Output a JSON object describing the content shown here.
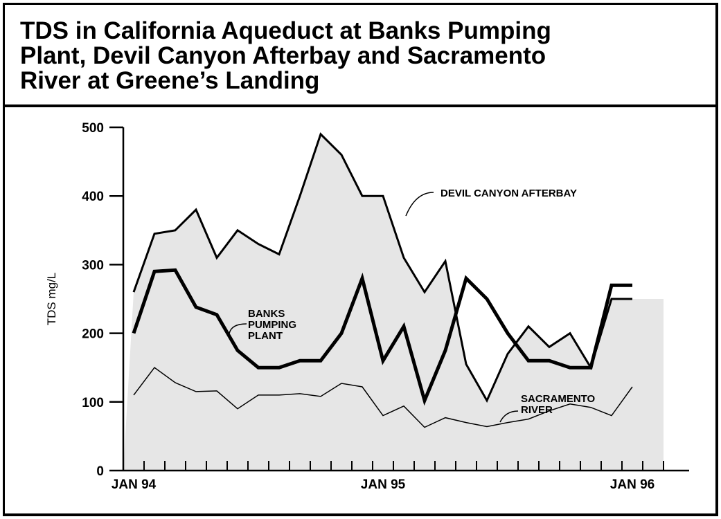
{
  "title": "TDS in California Aqueduct at Banks Pumping\nPlant, Devil Canyon Afterbay and Sacramento\nRiver at Greene’s Landing",
  "chart_data": {
    "type": "line",
    "title": "TDS in California Aqueduct at Banks Pumping Plant, Devil Canyon Afterbay and Sacramento River at Greene’s Landing",
    "xlabel": "",
    "ylabel": "TDS mg/L",
    "ylim": [
      0,
      500
    ],
    "yticks": [
      0,
      100,
      200,
      300,
      400,
      500
    ],
    "ytick_labels": [
      "0",
      "100",
      "200",
      "300",
      "400",
      "500"
    ],
    "xticks": [
      "JAN 94",
      "JAN 95",
      "JAN 96"
    ],
    "x_unit": "months since JAN 94 (monthly samples)",
    "xlim": [
      0,
      24
    ],
    "x": [
      0,
      1,
      2,
      3,
      4,
      5,
      6,
      7,
      8,
      9,
      10,
      11,
      12,
      13,
      14,
      15,
      16,
      17,
      18,
      19,
      20,
      21,
      22,
      23,
      24,
      25
    ],
    "grid": false,
    "legend": "none (series labeled by callouts)",
    "fill_color": "#e6e6e6",
    "series": [
      {
        "name": "DEVIL CANYON AFTERBAY",
        "label_lines": [
          "DEVIL CANYON AFTERBAY"
        ],
        "values": [
          260,
          345,
          350,
          380,
          310,
          350,
          330,
          315,
          400,
          490,
          460,
          400,
          400,
          310,
          260,
          305,
          155,
          102,
          170,
          210,
          180,
          200,
          150,
          250,
          250,
          null
        ],
        "stroke_width": 3
      },
      {
        "name": "BANKS PUMPING PLANT",
        "label_lines": [
          "BANKS",
          "PUMPING",
          "PLANT"
        ],
        "values": [
          200,
          290,
          292,
          238,
          227,
          175,
          150,
          150,
          160,
          160,
          200,
          280,
          160,
          210,
          102,
          175,
          280,
          250,
          200,
          160,
          160,
          150,
          150,
          270,
          270,
          null
        ],
        "stroke_width": 5
      },
      {
        "name": "SACRAMENTO RIVER",
        "label_lines": [
          "SACRAMENTO",
          "RIVER"
        ],
        "values": [
          110,
          150,
          128,
          115,
          116,
          90,
          110,
          110,
          112,
          108,
          127,
          122,
          80,
          94,
          63,
          77,
          70,
          64,
          70,
          75,
          87,
          97,
          92,
          80,
          122,
          null
        ],
        "stroke_width": 1.5
      }
    ]
  }
}
